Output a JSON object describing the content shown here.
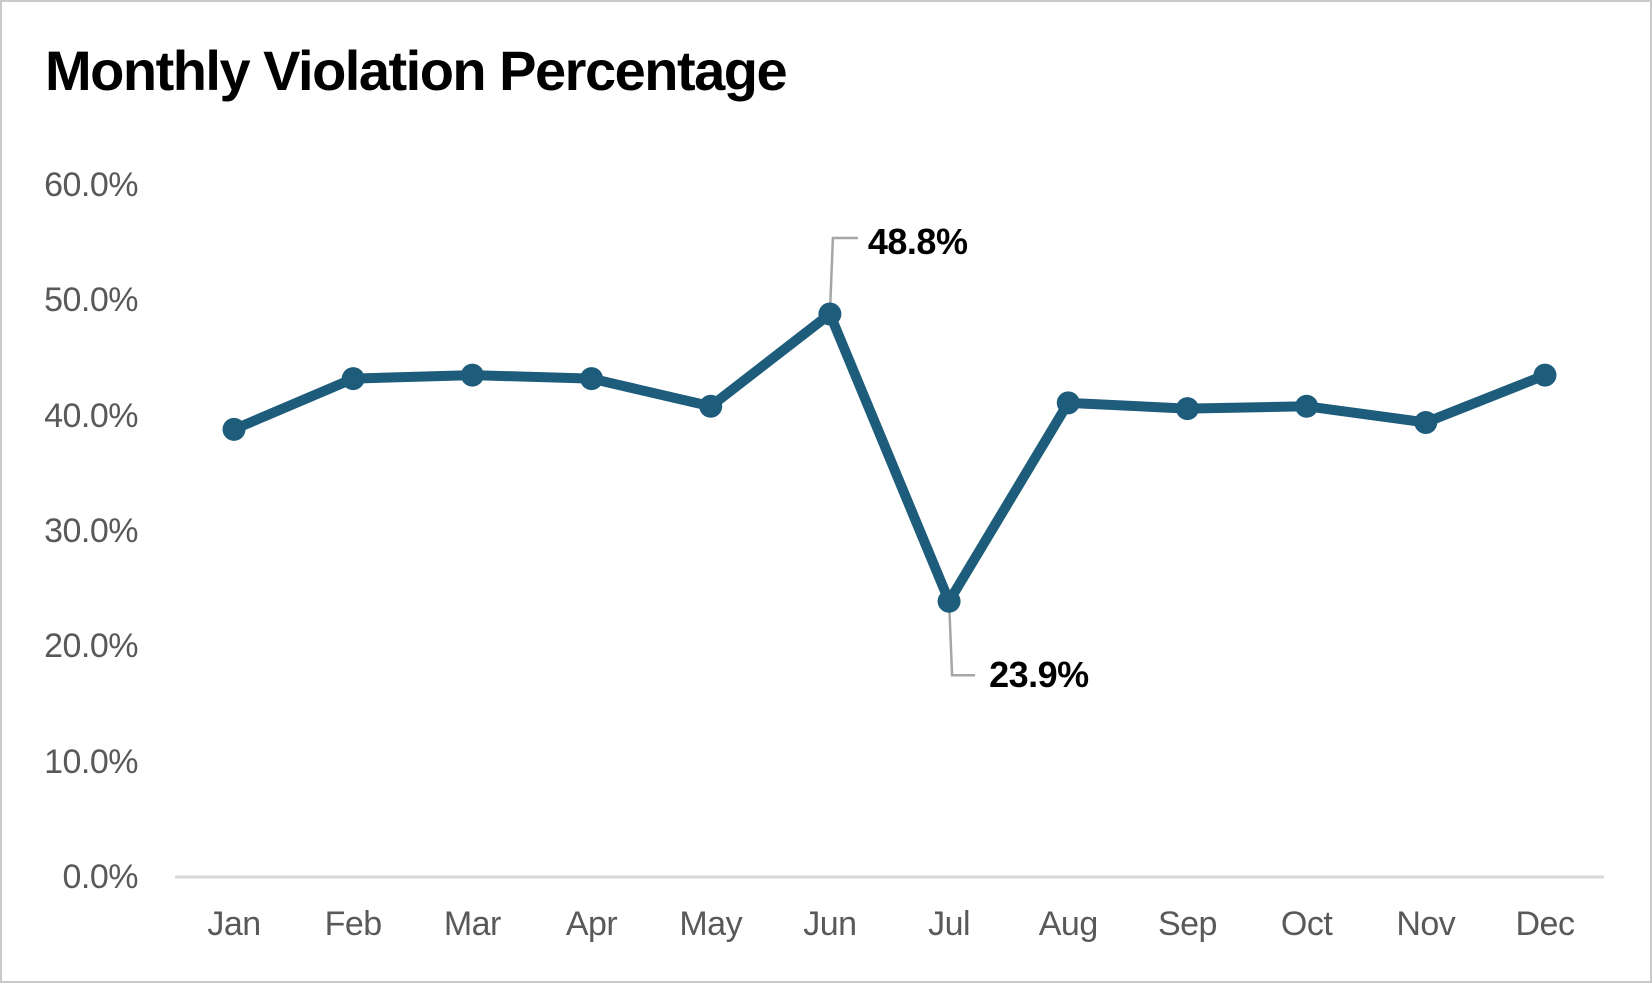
{
  "chart_data": {
    "type": "line",
    "title": "Monthly Violation Percentage",
    "categories": [
      "Jan",
      "Feb",
      "Mar",
      "Apr",
      "May",
      "Jun",
      "Jul",
      "Aug",
      "Sep",
      "Oct",
      "Nov",
      "Dec"
    ],
    "series": [
      {
        "name": "Monthly Violation Percentage",
        "values": [
          38.8,
          43.2,
          43.5,
          43.2,
          40.8,
          48.8,
          23.9,
          41.1,
          40.6,
          40.8,
          39.4,
          43.5
        ]
      }
    ],
    "xlabel": "",
    "ylabel": "",
    "ylim": [
      0,
      60
    ],
    "y_tick_step": 10,
    "y_tick_labels": [
      "0.0%",
      "10.0%",
      "20.0%",
      "30.0%",
      "40.0%",
      "50.0%",
      "60.0%"
    ],
    "grid": false,
    "legend_position": "none",
    "annotations": [
      {
        "category": "Jun",
        "index": 5,
        "label": "48.8%",
        "position": "above"
      },
      {
        "category": "Jul",
        "index": 6,
        "label": "23.9%",
        "position": "below"
      }
    ],
    "colors": {
      "line": "#1d5c7a",
      "marker": "#1d5c7a",
      "axis_line": "#d9d9d9",
      "tick_label": "#595959",
      "annotation_text": "#000000",
      "leader_line": "#a6a6a6",
      "background": "#ffffff",
      "border": "#c9c9c9"
    }
  }
}
